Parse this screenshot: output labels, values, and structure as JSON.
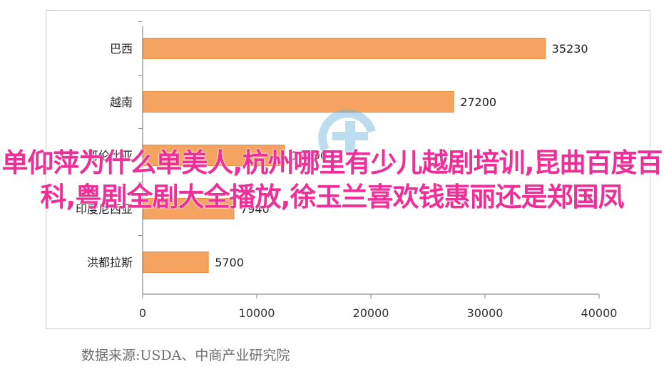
{
  "chart_data": {
    "type": "bar",
    "orientation": "horizontal",
    "categories": [
      "巴西",
      "越南",
      "哥伦比亚",
      "印度尼西亚",
      "洪都拉斯"
    ],
    "values": [
      35230,
      27200,
      12390,
      7940,
      5700
    ],
    "data_labels": [
      "35230",
      "27200",
      "12390",
      "7940",
      "5700"
    ],
    "xlim": [
      0,
      40000
    ],
    "x_ticks": [
      "0",
      "10000",
      "20000",
      "30000",
      "40000"
    ],
    "grid": false,
    "legend": "none",
    "bar_color": "#f4a460",
    "bar_edge_color": "#e8913f"
  },
  "source_note": "数据来源:USDA、中商产业研究院",
  "overlay_caption": "单仰萍为什么单美人,杭州哪里有少儿越剧培训,昆曲百度百科,粤剧全剧大全播放,徐玉兰喜欢钱惠丽还是郑国凤",
  "colors": {
    "overlay_text": "#ee2f97",
    "axis": "#8a8a8a",
    "watermark": "#6cb4e0"
  }
}
